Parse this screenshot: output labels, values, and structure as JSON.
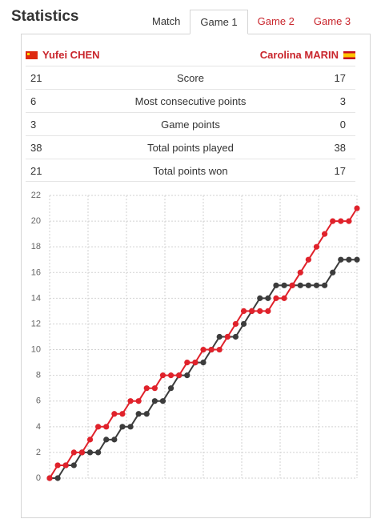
{
  "header": {
    "title": "Statistics",
    "tabs": [
      {
        "label": "Match",
        "active": false
      },
      {
        "label": "Game 1",
        "active": true
      },
      {
        "label": "Game 2",
        "active": false
      },
      {
        "label": "Game 3",
        "active": false
      }
    ]
  },
  "players": {
    "left": {
      "name": "Yufei CHEN",
      "flag": "china-flag"
    },
    "right": {
      "name": "Carolina MARIN",
      "flag": "spain-flag"
    }
  },
  "stats": [
    {
      "left": "21",
      "label": "Score",
      "right": "17"
    },
    {
      "left": "6",
      "label": "Most consecutive points",
      "right": "3"
    },
    {
      "left": "3",
      "label": "Game points",
      "right": "0"
    },
    {
      "left": "38",
      "label": "Total points played",
      "right": "38"
    },
    {
      "left": "21",
      "label": "Total points won",
      "right": "17"
    }
  ],
  "colors": {
    "accent": "#c9252c",
    "series_red": "#e0222b",
    "series_dark": "#3c3c3c"
  },
  "chart_data": {
    "type": "line",
    "x": [
      0,
      1,
      2,
      3,
      4,
      5,
      6,
      7,
      8,
      9,
      10,
      11,
      12,
      13,
      14,
      15,
      16,
      17,
      18,
      19,
      20,
      21,
      22,
      23,
      24,
      25,
      26,
      27,
      28,
      29,
      30,
      31,
      32,
      33,
      34,
      35,
      36,
      37,
      38
    ],
    "ylim": [
      0,
      22
    ],
    "yticks": [
      0,
      2,
      4,
      6,
      8,
      10,
      12,
      14,
      16,
      18,
      20,
      22
    ],
    "grid": true,
    "series": [
      {
        "color": "#e0222b",
        "values": [
          0,
          1,
          1,
          2,
          2,
          3,
          4,
          4,
          5,
          5,
          6,
          6,
          7,
          7,
          8,
          8,
          8,
          9,
          9,
          10,
          10,
          10,
          11,
          12,
          13,
          13,
          13,
          13,
          14,
          14,
          15,
          16,
          17,
          18,
          19,
          20,
          20,
          20,
          21
        ]
      },
      {
        "color": "#3c3c3c",
        "values": [
          0,
          0,
          1,
          1,
          2,
          2,
          2,
          3,
          3,
          4,
          4,
          5,
          5,
          6,
          6,
          7,
          8,
          8,
          9,
          9,
          10,
          11,
          11,
          11,
          12,
          13,
          14,
          14,
          15,
          15,
          15,
          15,
          15,
          15,
          15,
          16,
          17,
          17,
          17
        ]
      }
    ]
  }
}
